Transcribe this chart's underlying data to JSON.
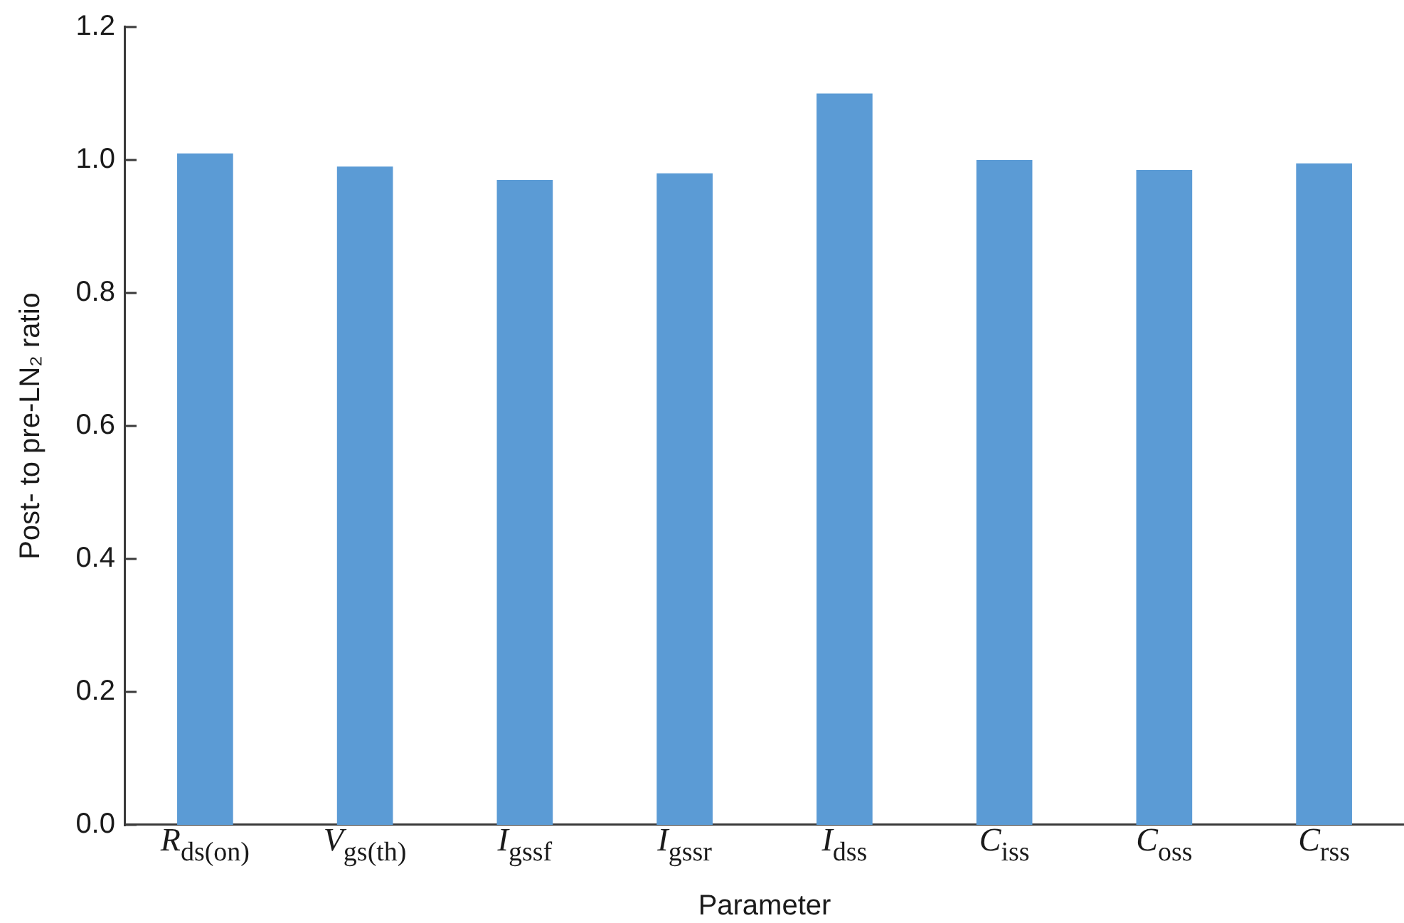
{
  "chart_data": {
    "type": "bar",
    "xlabel": "Parameter",
    "ylabel": "Post- to pre-LN₂ ratio",
    "categories": [
      "R$_{ds(on)}$",
      "V$_{gs(th)}$",
      "I$_{gssf}$",
      "I$_{gssr}$",
      "I$_{dss}$",
      "C$_{iss}$",
      "C$_{oss}$",
      "C$_{rss}$"
    ],
    "values": [
      1.01,
      0.99,
      0.97,
      0.98,
      1.1,
      1.0,
      0.985,
      0.995
    ],
    "color": "#5b9bd5",
    "ylim": [
      0,
      1.2
    ],
    "yticks": [
      {
        "value": 0,
        "label": "0.0"
      },
      0.2,
      0.4,
      0.6,
      0.8,
      {
        "value": 1,
        "label": "1.0"
      },
      1.2
    ]
  }
}
